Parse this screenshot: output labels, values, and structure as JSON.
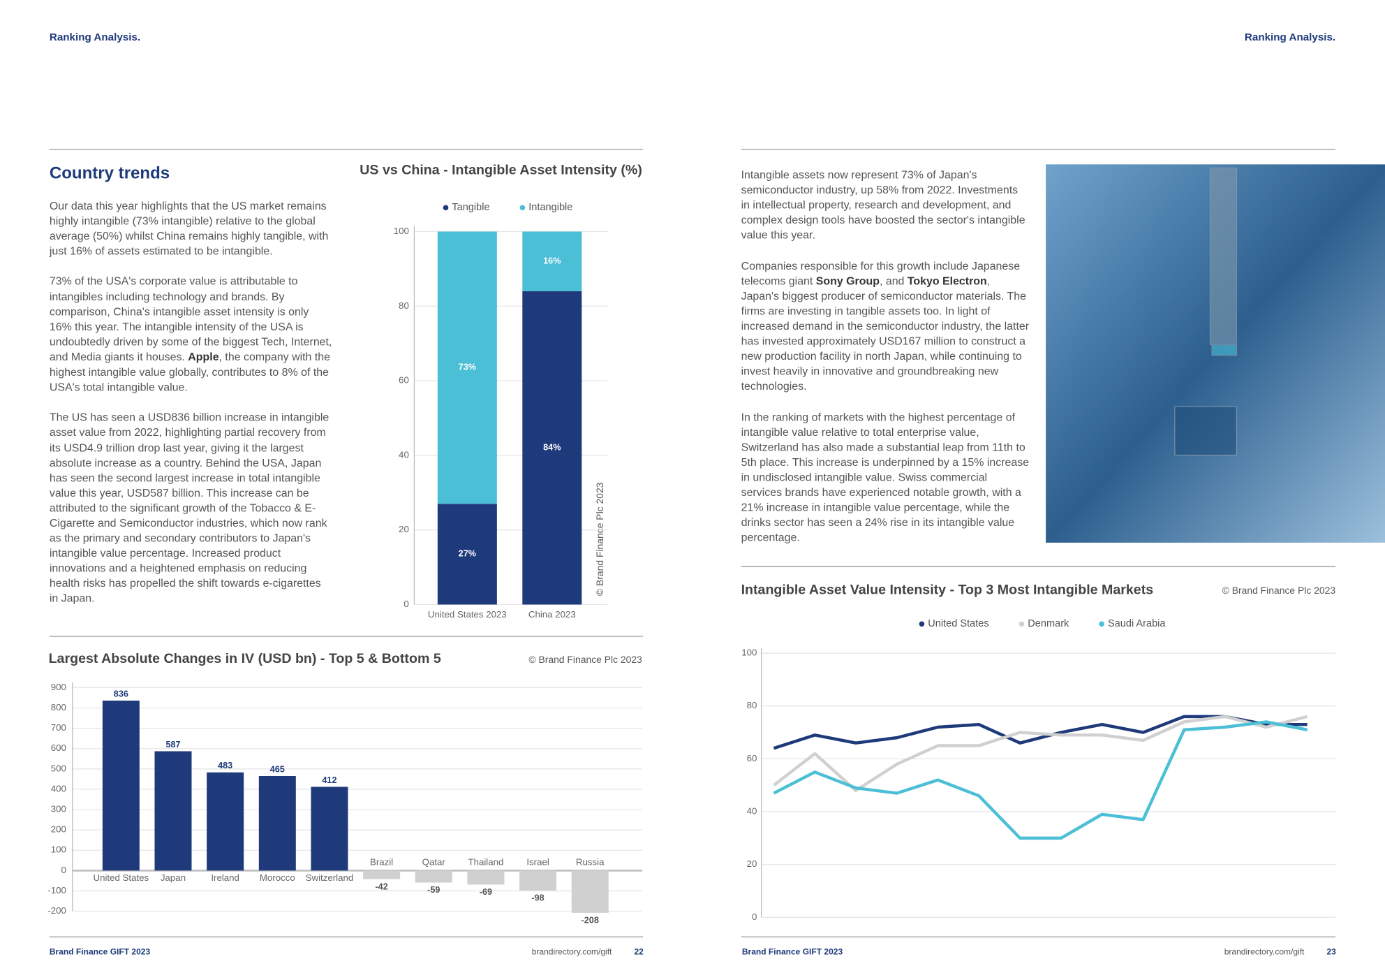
{
  "header": {
    "left": "Ranking Analysis.",
    "right": "Ranking Analysis."
  },
  "left": {
    "heading": "Country trends",
    "paragraphs": [
      [
        "Our data this year highlights that the US market remains highly intangible (73% intangible) relative to the global average (50%) whilst China remains highly tangible, with just 16% of assets estimated to be intangible."
      ],
      [
        "73% of the USA's corporate value is attributable to intangibles including technology and brands. By comparison, China's intangible asset intensity is only 16% this year. The intangible intensity of the USA is undoubtedly driven by some of the biggest Tech, Internet, and Media giants it houses. ",
        "Apple",
        ", the company with the highest intangible value globally, contributes to 8% of the USA's total intangible value."
      ],
      [
        "The US has seen a USD836 billion increase in intangible asset value from 2022, highlighting partial recovery from its USD4.9 trillion drop last year, giving it the largest absolute increase as a country. Behind the USA, Japan has seen the second largest increase in total intangible value this year, USD587 billion. This increase can be attributed to the significant growth of the Tobacco & E-Cigarette and Semiconductor industries, which now rank as the primary and secondary contributors to Japan's intangible value percentage. Increased product innovations and a heightened emphasis on reducing health risks has propelled the shift towards e-cigarettes in Japan."
      ]
    ]
  },
  "right": {
    "paragraphs": [
      [
        "Intangible assets now represent 73% of Japan's semiconductor industry, up 58% from 2022. Investments in intellectual property, research and development, and complex design tools have boosted the sector's intangible value this year."
      ],
      [
        "Companies responsible for this growth include Japanese telecoms giant ",
        "Sony Group",
        ", and ",
        "Tokyo Electron",
        ", Japan's biggest producer of semiconductor materials. The firms are investing in tangible assets too. In light of increased demand in the semiconductor industry, the latter has invested approximately USD167 million to construct a new production facility in north Japan, while continuing to invest heavily in innovative and groundbreaking new technologies."
      ],
      [
        "In the ranking of markets with the highest percentage of intangible value relative to total enterprise value, Switzerland has also made a substantial leap from 11th to 5th place. This increase is underpinned by a 15% increase in undisclosed intangible value. Swiss commercial services brands have experienced notable growth, with a 21% increase in intangible value percentage, while the drinks sector has seen a 24% rise in its intangible value percentage."
      ]
    ]
  },
  "chart_data": [
    {
      "type": "bar",
      "stacked": true,
      "title": "US vs China - Intangible Asset Intensity (%)",
      "annotation": "© Brand Finance Plc 2023",
      "categories": [
        "United States 2023",
        "China 2023"
      ],
      "series": [
        {
          "name": "Tangible",
          "color": "#1f3a7a",
          "values": [
            27,
            84
          ],
          "value_labels": [
            "27%",
            "84%"
          ]
        },
        {
          "name": "Intangible",
          "color": "#4bbfd6",
          "values": [
            73,
            16
          ],
          "value_labels": [
            "73%",
            "16%"
          ]
        }
      ],
      "ylim": [
        0,
        100
      ],
      "yticks": [
        0,
        20,
        40,
        60,
        80,
        100
      ],
      "grid": true,
      "legend": "top"
    },
    {
      "type": "bar",
      "title": "Largest Absolute Changes in IV (USD bn) - Top 5 & Bottom 5",
      "annotation": "© Brand Finance Plc 2023",
      "categories": [
        "United States",
        "Japan",
        "Ireland",
        "Morocco",
        "Switzerland",
        "Brazil",
        "Qatar",
        "Thailand",
        "Israel",
        "Russia"
      ],
      "values": [
        836,
        587,
        483,
        465,
        412,
        -42,
        -59,
        -69,
        -98,
        -208
      ],
      "colors": [
        "#1f3a7a",
        "#1f3a7a",
        "#1f3a7a",
        "#1f3a7a",
        "#1f3a7a",
        "#d0d0d0",
        "#d0d0d0",
        "#d0d0d0",
        "#d0d0d0",
        "#d0d0d0"
      ],
      "ylim": [
        -200,
        900
      ],
      "yticks": [
        -200,
        -100,
        0,
        100,
        200,
        300,
        400,
        500,
        600,
        700,
        800,
        900
      ],
      "grid": true
    },
    {
      "type": "line",
      "title": "Intangible Asset Value Intensity - Top 3 Most Intangible Markets",
      "annotation": "© Brand Finance Plc 2023",
      "categories": [
        null,
        null,
        null,
        null,
        null,
        null,
        null,
        null,
        null,
        null,
        null,
        null,
        null,
        null
      ],
      "series": [
        {
          "name": "United States",
          "color": "#1f3a7a",
          "values": [
            64,
            69,
            66,
            68,
            72,
            73,
            66,
            70,
            73,
            70,
            76,
            76,
            73,
            73
          ]
        },
        {
          "name": "Denmark",
          "color": "#d0d0d0",
          "values": [
            50,
            62,
            48,
            58,
            65,
            65,
            70,
            69,
            69,
            67,
            74,
            76,
            72,
            76
          ]
        },
        {
          "name": "Saudi Arabia",
          "color": "#4bbfd6",
          "values": [
            47,
            55,
            49,
            47,
            52,
            46,
            30,
            30,
            39,
            37,
            71,
            72,
            74,
            71
          ]
        }
      ],
      "ylim": [
        0,
        100
      ],
      "yticks": [
        0,
        20,
        40,
        60,
        80,
        100
      ],
      "grid": true,
      "legend": "top"
    }
  ],
  "footer": {
    "left_title": "Brand Finance GIFT 2023",
    "left_url": "brandirectory.com/gift",
    "left_page": "22",
    "right_title": "Brand Finance GIFT 2023",
    "right_url": "brandirectory.com/gift",
    "right_page": "23"
  }
}
